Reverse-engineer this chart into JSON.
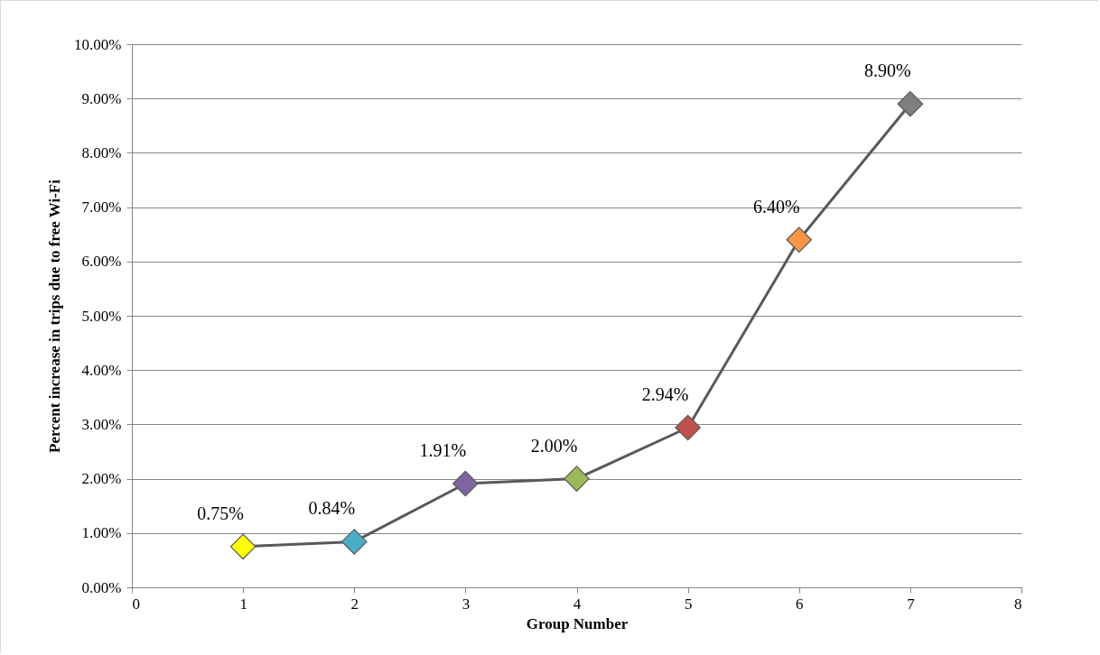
{
  "chart_data": {
    "type": "line",
    "xlabel": "Group Number",
    "ylabel": "Percent increase in trips due to free Wi-Fi",
    "x": [
      1,
      2,
      3,
      4,
      5,
      6,
      7
    ],
    "values": [
      0.75,
      0.84,
      1.91,
      2.0,
      2.94,
      6.4,
      8.9
    ],
    "value_labels": [
      "0.75%",
      "0.84%",
      "1.91%",
      "2.00%",
      "2.94%",
      "6.40%",
      "8.90%"
    ],
    "color": "#595959",
    "colors": [
      "#ffff00",
      "#4bacc6",
      "#8064a2",
      "#9bbb59",
      "#c0504d",
      "#f79646",
      "#7f7f7f"
    ],
    "marker": "diamond",
    "line_style": "solid",
    "grid": "y",
    "xlim": [
      0,
      8
    ],
    "xticks": [
      0,
      1,
      2,
      3,
      4,
      5,
      6,
      7,
      8
    ],
    "ylim": [
      0,
      10
    ],
    "yticks": [
      {
        "value": 0,
        "label": "0.00%"
      },
      {
        "value": 1,
        "label": "1.00%"
      },
      {
        "value": 2,
        "label": "2.00%"
      },
      {
        "value": 3,
        "label": "3.00%"
      },
      {
        "value": 4,
        "label": "4.00%"
      },
      {
        "value": 5,
        "label": "5.00%"
      },
      {
        "value": 6,
        "label": "6.00%"
      },
      {
        "value": 7,
        "label": "7.00%"
      },
      {
        "value": 8,
        "label": "8.00%"
      },
      {
        "value": 9,
        "label": "9.00%"
      },
      {
        "value": 10,
        "label": "10.00%"
      }
    ]
  }
}
